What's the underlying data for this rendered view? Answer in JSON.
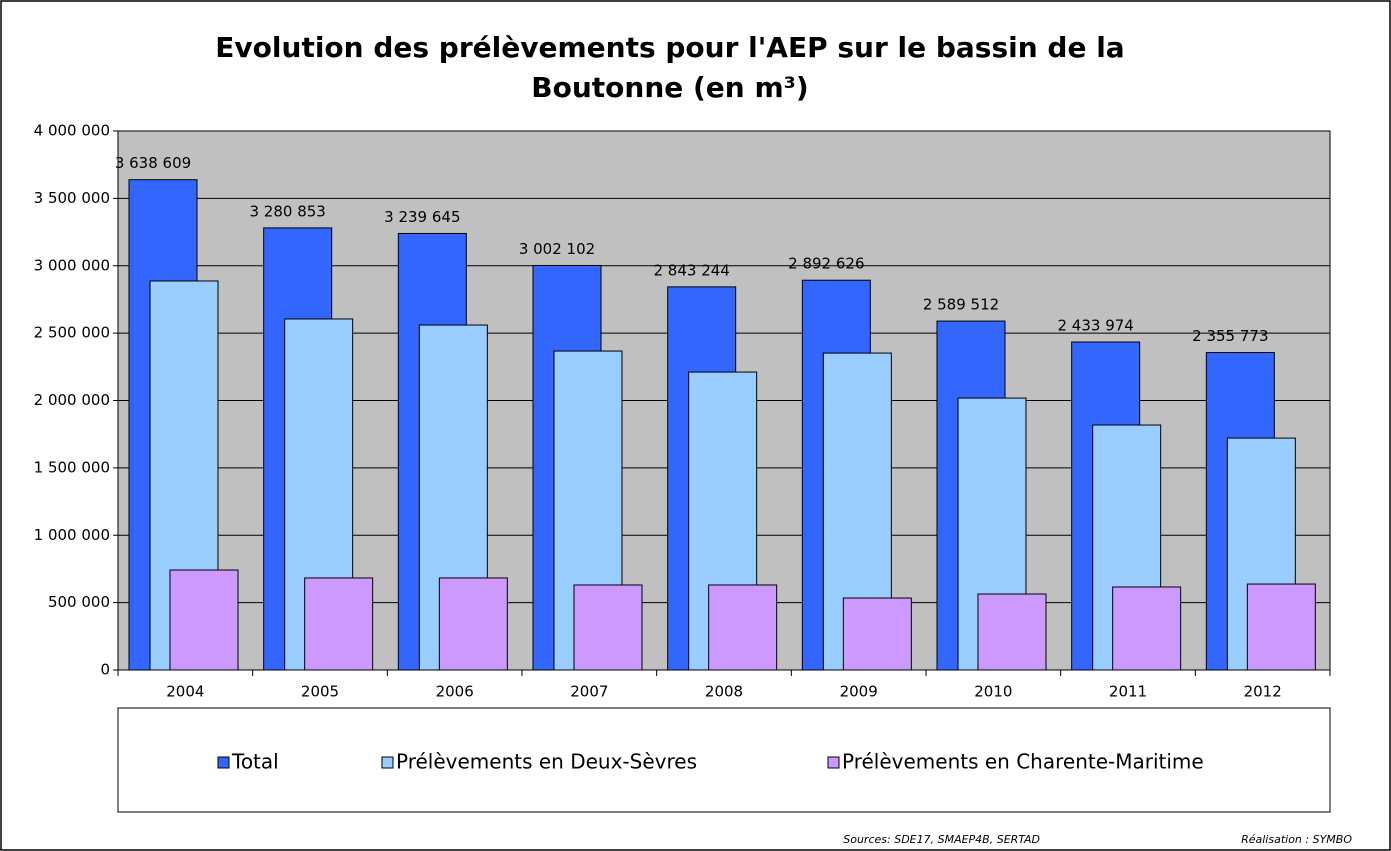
{
  "chart_data": {
    "type": "bar",
    "title": "Evolution des prélèvements pour l'AEP sur le bassin de la Boutonne (en m³)",
    "categories": [
      "2004",
      "2005",
      "2006",
      "2007",
      "2008",
      "2009",
      "2010",
      "2011",
      "2012"
    ],
    "series": [
      {
        "name": "Total",
        "color": "#3366ff",
        "values": [
          3638609,
          3280853,
          3239645,
          3002102,
          2843244,
          2892626,
          2589512,
          2433974,
          2355773
        ],
        "value_labels": [
          "3 638 609",
          "3 280 853",
          "3 239 645",
          "3 002 102",
          "2 843 244",
          "2 892 626",
          "2 589 512",
          "2 433 974",
          "2 355 773"
        ]
      },
      {
        "name": "Prélèvements en Deux-Sèvres",
        "color": "#99ccff",
        "values": [
          2887000,
          2605000,
          2560000,
          2367000,
          2211000,
          2352000,
          2018000,
          1818000,
          1721000
        ]
      },
      {
        "name": "Prélèvements en Charente-Maritime",
        "color": "#cc99ff",
        "values": [
          742000,
          683000,
          683000,
          631000,
          631000,
          534000,
          564000,
          616000,
          638000
        ]
      }
    ],
    "ylim": [
      0,
      4000000
    ],
    "yticks": [
      0,
      {
        "value": 500000,
        "label": "500 000"
      },
      {
        "value": 1000000,
        "label": "1 000 000"
      },
      {
        "value": 1500000,
        "label": "1 500 000"
      },
      {
        "value": 2000000,
        "label": "2 000 000"
      },
      {
        "value": 2500000,
        "label": "2 500 000"
      },
      {
        "value": 3000000,
        "label": "3 000 000"
      },
      {
        "value": 3500000,
        "label": "3 500 000"
      },
      {
        "value": 4000000,
        "label": "4 000 000"
      }
    ],
    "grid": true,
    "legend": "bottom",
    "source": "Sources: SDE17, SMAEP4B, SERTAD",
    "credit": "Réalisation : SYMBO"
  }
}
